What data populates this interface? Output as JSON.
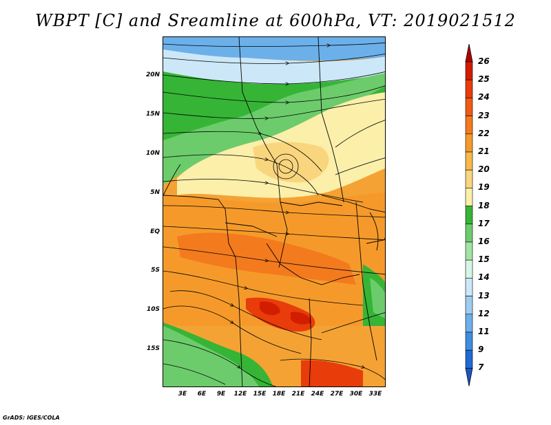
{
  "title": "WBPT [C] and Sreamline at 600hPa, VT: 2019021512",
  "footer": "GrADS: IGES/COLA",
  "lat_labels": [
    "20N",
    "15N",
    "10N",
    "5N",
    "EQ",
    "5S",
    "10S",
    "15S"
  ],
  "lon_labels": [
    "3E",
    "6E",
    "9E",
    "12E",
    "15E",
    "18E",
    "21E",
    "24E",
    "27E",
    "30E",
    "33E"
  ],
  "colorbar": {
    "labels": [
      "26",
      "25",
      "24",
      "23",
      "22",
      "21",
      "20",
      "19",
      "18",
      "17",
      "16",
      "15",
      "14",
      "13",
      "12",
      "11",
      "9",
      "7"
    ],
    "colors": [
      "#b40000",
      "#d21d00",
      "#e83c0a",
      "#f05a14",
      "#f47a1e",
      "#f59a2a",
      "#f7b84a",
      "#f9d67e",
      "#fbefaa",
      "#36b436",
      "#6ccc6c",
      "#a3e3a3",
      "#d6f5e8",
      "#cce8f8",
      "#9dcdf0",
      "#6cb0ea",
      "#3e8ee0",
      "#1f6ad4",
      "#1c55c8"
    ]
  },
  "map": {
    "fields": [
      "wet-bulb potential temperature",
      "streamlines"
    ],
    "level": "600hPa",
    "valid_time": "2019021512"
  }
}
